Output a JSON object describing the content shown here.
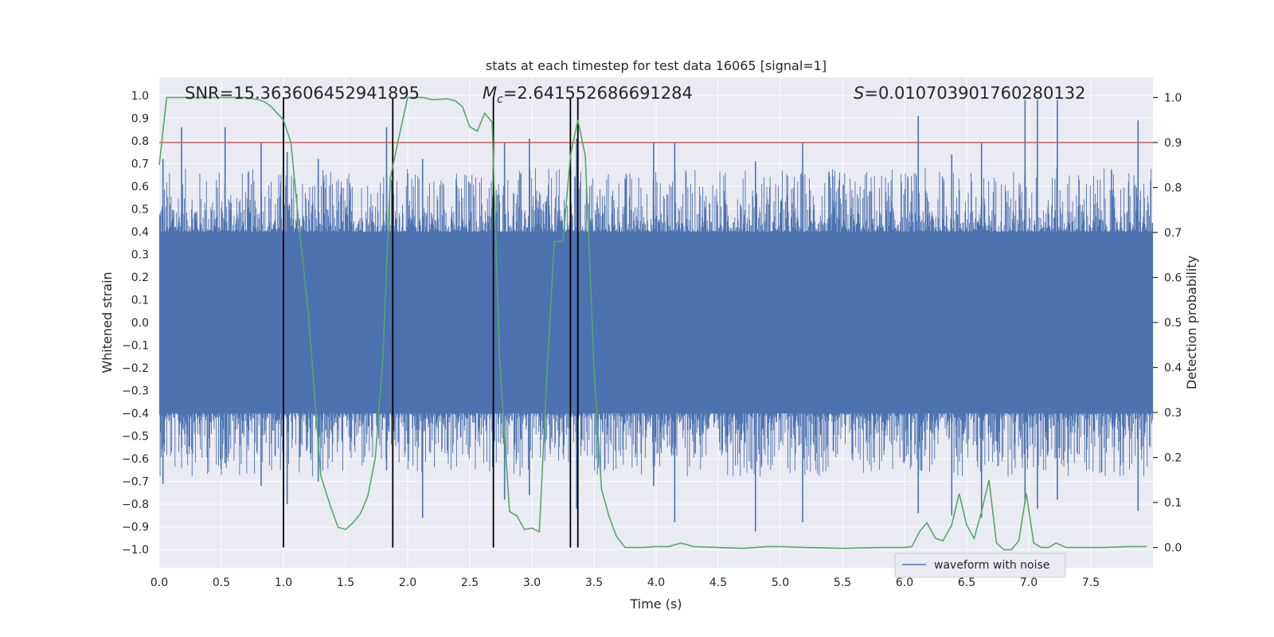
{
  "chart_data": {
    "type": "line",
    "title": "stats at each timestep for test data 16065 [signal=1]",
    "xlabel": "Time (s)",
    "ylabel_left": "Whitened strain",
    "ylabel_right": "Detection probability",
    "xlim": [
      0.0,
      8.0
    ],
    "ylim_left": [
      -1.08,
      1.08
    ],
    "ylim_right": [
      -0.045,
      1.045
    ],
    "x_ticks": [
      "0.0",
      "0.5",
      "1.0",
      "1.5",
      "2.0",
      "2.5",
      "3.0",
      "3.5",
      "4.0",
      "4.5",
      "5.0",
      "5.5",
      "6.0",
      "6.5",
      "7.0",
      "7.5"
    ],
    "y_ticks_left": [
      "1.0",
      "0.9",
      "0.8",
      "0.7",
      "0.6",
      "0.5",
      "0.4",
      "0.3",
      "0.2",
      "0.1",
      "0.0",
      "−0.1",
      "−0.2",
      "−0.3",
      "−0.4",
      "−0.5",
      "−0.6",
      "−0.7",
      "−0.8",
      "−0.9",
      "−1.0"
    ],
    "y_ticks_right": [
      "1.0",
      "0.9",
      "0.8",
      "0.7",
      "0.6",
      "0.5",
      "0.4",
      "0.3",
      "0.2",
      "0.1",
      "0.0"
    ],
    "grid": true,
    "legend_position": "lower-right",
    "annotations": {
      "snr": "SNR=15.363606452941895",
      "mc_symbol": "M",
      "mc_sub": "c",
      "mc_value": "=2.641552686691284",
      "s_symbol": "S",
      "s_value": "=0.010703901760280132"
    },
    "threshold": {
      "value": 0.9,
      "axis": "right",
      "color": "#c44e52"
    },
    "vlines": [
      1.0,
      1.88,
      2.69,
      3.31,
      3.37
    ],
    "series": [
      {
        "name": "waveform with noise",
        "axis": "left",
        "color": "#4c72b0",
        "style": "dense-noise",
        "envelope_typical": 0.4,
        "spikes": [
          {
            "x": 0.03,
            "hi": 0.72,
            "lo": -0.71
          },
          {
            "x": 0.18,
            "hi": 0.86,
            "lo": -0.55
          },
          {
            "x": 0.53,
            "hi": 0.86,
            "lo": -0.62
          },
          {
            "x": 0.82,
            "hi": 0.79,
            "lo": -0.72
          },
          {
            "x": 1.03,
            "hi": 0.75,
            "lo": -0.8
          },
          {
            "x": 1.28,
            "hi": 0.72,
            "lo": -0.7
          },
          {
            "x": 1.83,
            "hi": 0.86,
            "lo": -0.65
          },
          {
            "x": 2.12,
            "hi": 0.72,
            "lo": -0.86
          },
          {
            "x": 2.78,
            "hi": 0.79,
            "lo": -0.78
          },
          {
            "x": 2.98,
            "hi": 0.81,
            "lo": -0.76
          },
          {
            "x": 3.36,
            "hi": 0.81,
            "lo": -0.82
          },
          {
            "x": 3.98,
            "hi": 0.79,
            "lo": -0.72
          },
          {
            "x": 4.15,
            "hi": 0.79,
            "lo": -0.88
          },
          {
            "x": 4.8,
            "hi": 0.71,
            "lo": -0.92
          },
          {
            "x": 5.18,
            "hi": 0.79,
            "lo": -0.88
          },
          {
            "x": 6.11,
            "hi": 0.91,
            "lo": -0.84
          },
          {
            "x": 6.38,
            "hi": 0.74,
            "lo": -0.85
          },
          {
            "x": 6.62,
            "hi": 0.79,
            "lo": -0.86
          },
          {
            "x": 6.97,
            "hi": 0.98,
            "lo": -0.8
          },
          {
            "x": 7.07,
            "hi": 0.98,
            "lo": -0.82
          },
          {
            "x": 7.23,
            "hi": 0.98,
            "lo": -0.78
          },
          {
            "x": 7.88,
            "hi": 0.89,
            "lo": -0.83
          }
        ]
      },
      {
        "name": "",
        "axis": "right",
        "color": "#55a868",
        "x": [
          0.0,
          0.06,
          0.12,
          0.25,
          0.5,
          0.7,
          0.8,
          0.85,
          0.9,
          0.95,
          1.0,
          1.06,
          1.12,
          1.2,
          1.3,
          1.38,
          1.44,
          1.5,
          1.56,
          1.62,
          1.68,
          1.74,
          1.8,
          1.86,
          1.92,
          2.0,
          2.06,
          2.12,
          2.2,
          2.26,
          2.32,
          2.38,
          2.44,
          2.5,
          2.56,
          2.62,
          2.68,
          2.74,
          2.82,
          2.88,
          2.94,
          3.0,
          3.06,
          3.12,
          3.18,
          3.25,
          3.31,
          3.37,
          3.43,
          3.5,
          3.56,
          3.62,
          3.68,
          3.75,
          3.82,
          3.9,
          4.0,
          4.1,
          4.2,
          4.3,
          4.5,
          4.7,
          4.9,
          5.0,
          5.2,
          5.5,
          5.8,
          6.0,
          6.06,
          6.12,
          6.18,
          6.25,
          6.31,
          6.38,
          6.44,
          6.5,
          6.56,
          6.62,
          6.68,
          6.74,
          6.8,
          6.86,
          6.92,
          6.98,
          7.04,
          7.1,
          7.16,
          7.22,
          7.3,
          7.4,
          7.6,
          7.8,
          7.95
        ],
        "values": [
          0.85,
          1.0,
          1.0,
          1.0,
          1.0,
          1.0,
          0.995,
          0.99,
          0.98,
          0.965,
          0.95,
          0.9,
          0.73,
          0.52,
          0.16,
          0.09,
          0.045,
          0.04,
          0.055,
          0.075,
          0.115,
          0.2,
          0.42,
          0.82,
          0.9,
          1.0,
          1.0,
          1.0,
          0.995,
          0.996,
          0.997,
          0.993,
          0.98,
          0.935,
          0.925,
          0.965,
          0.945,
          0.42,
          0.08,
          0.07,
          0.04,
          0.043,
          0.035,
          0.38,
          0.68,
          0.68,
          0.87,
          0.95,
          0.87,
          0.4,
          0.13,
          0.07,
          0.025,
          0.0,
          0.0,
          0.0,
          0.002,
          0.002,
          0.01,
          0.002,
          0.0,
          -0.002,
          0.002,
          0.002,
          0.0,
          -0.002,
          0.0,
          0.0,
          0.002,
          0.035,
          0.055,
          0.02,
          0.015,
          0.05,
          0.12,
          0.05,
          0.02,
          0.08,
          0.15,
          0.01,
          -0.005,
          -0.005,
          0.015,
          0.12,
          0.01,
          0.0,
          0.0,
          0.01,
          0.0,
          0.0,
          0.0,
          0.002,
          0.002
        ]
      }
    ]
  }
}
